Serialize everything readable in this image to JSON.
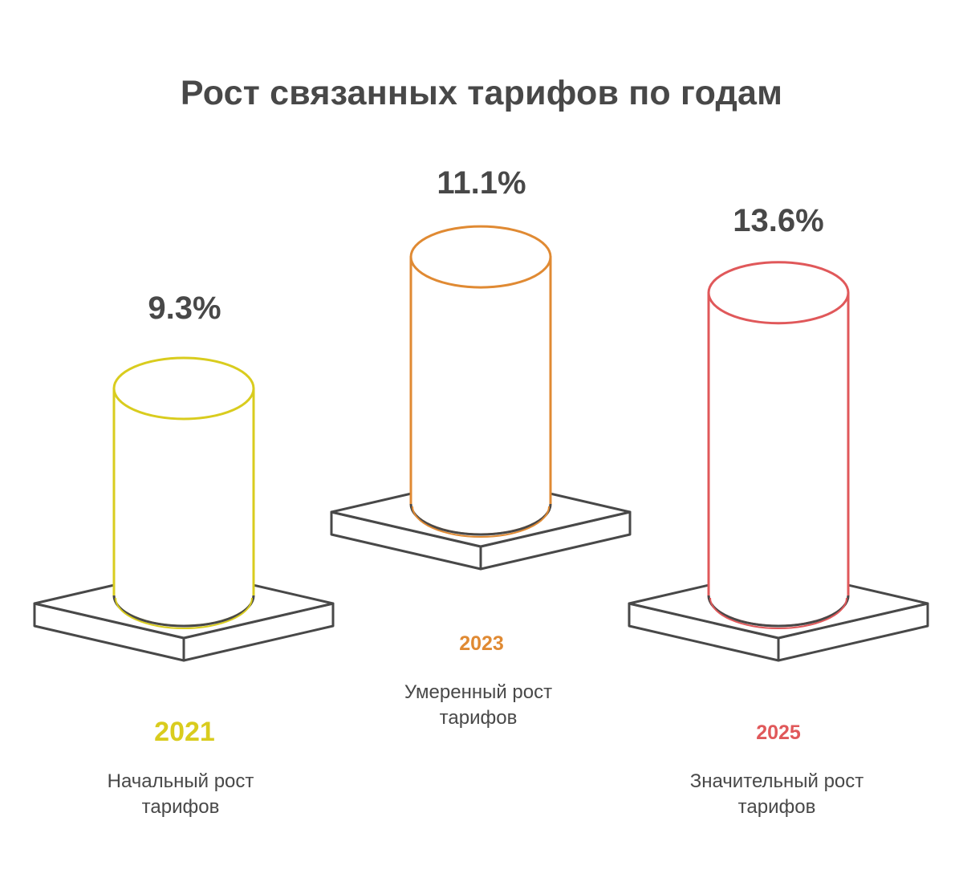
{
  "title": "Рост связанных тарифов по годам",
  "chart_data": {
    "type": "bar",
    "style": "3d-cylinders-on-pedestals",
    "categories": [
      "2021",
      "2023",
      "2025"
    ],
    "values": [
      9.3,
      11.1,
      13.6
    ],
    "value_labels": [
      "9.3%",
      "11.1%",
      "13.6%"
    ],
    "descriptions": [
      "Начальный рост\nтарифов",
      "Умеренный рост\nтарифов",
      "Значительный рост\nтарифов"
    ],
    "colors": [
      "#d9cc1e",
      "#e08a33",
      "#e0585a"
    ],
    "unit": "%"
  }
}
